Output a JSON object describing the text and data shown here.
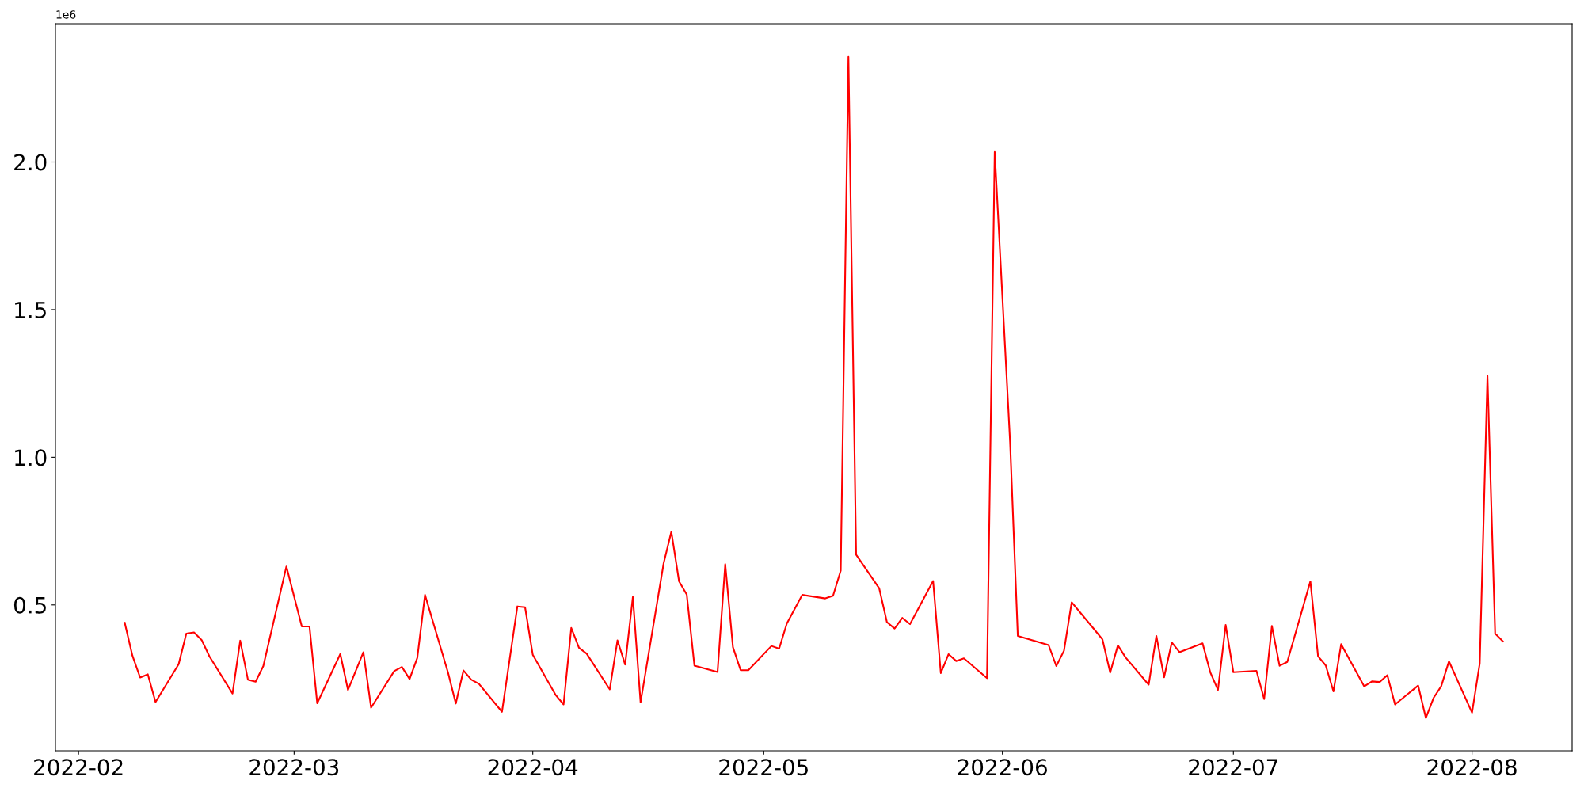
{
  "chart_data": {
    "type": "line",
    "annotations": [
      "1e6"
    ],
    "x": [
      "2022-02-07",
      "2022-02-08",
      "2022-02-09",
      "2022-02-10",
      "2022-02-11",
      "2022-02-14",
      "2022-02-15",
      "2022-02-16",
      "2022-02-17",
      "2022-02-18",
      "2022-02-21",
      "2022-02-22",
      "2022-02-23",
      "2022-02-24",
      "2022-02-25",
      "2022-02-28",
      "2022-03-02",
      "2022-03-03",
      "2022-03-04",
      "2022-03-07",
      "2022-03-08",
      "2022-03-10",
      "2022-03-11",
      "2022-03-14",
      "2022-03-15",
      "2022-03-16",
      "2022-03-17",
      "2022-03-18",
      "2022-03-21",
      "2022-03-22",
      "2022-03-23",
      "2022-03-24",
      "2022-03-25",
      "2022-03-28",
      "2022-03-30",
      "2022-03-31",
      "2022-04-01",
      "2022-04-04",
      "2022-04-05",
      "2022-04-06",
      "2022-04-07",
      "2022-04-08",
      "2022-04-11",
      "2022-04-12",
      "2022-04-13",
      "2022-04-14",
      "2022-04-15",
      "2022-04-18",
      "2022-04-19",
      "2022-04-20",
      "2022-04-21",
      "2022-04-22",
      "2022-04-25",
      "2022-04-26",
      "2022-04-27",
      "2022-04-28",
      "2022-04-29",
      "2022-05-02",
      "2022-05-03",
      "2022-05-04",
      "2022-05-06",
      "2022-05-09",
      "2022-05-10",
      "2022-05-11",
      "2022-05-12",
      "2022-05-13",
      "2022-05-16",
      "2022-05-17",
      "2022-05-18",
      "2022-05-19",
      "2022-05-20",
      "2022-05-23",
      "2022-05-24",
      "2022-05-25",
      "2022-05-26",
      "2022-05-27",
      "2022-05-30",
      "2022-05-31",
      "2022-06-02",
      "2022-06-03",
      "2022-06-07",
      "2022-06-08",
      "2022-06-09",
      "2022-06-10",
      "2022-06-13",
      "2022-06-14",
      "2022-06-15",
      "2022-06-16",
      "2022-06-17",
      "2022-06-20",
      "2022-06-21",
      "2022-06-22",
      "2022-06-23",
      "2022-06-24",
      "2022-06-27",
      "2022-06-28",
      "2022-06-29",
      "2022-06-30",
      "2022-07-01",
      "2022-07-04",
      "2022-07-05",
      "2022-07-06",
      "2022-07-07",
      "2022-07-08",
      "2022-07-11",
      "2022-07-12",
      "2022-07-13",
      "2022-07-14",
      "2022-07-15",
      "2022-07-18",
      "2022-07-19",
      "2022-07-20",
      "2022-07-21",
      "2022-07-22",
      "2022-07-25",
      "2022-07-26",
      "2022-07-27",
      "2022-07-28",
      "2022-07-29",
      "2022-08-01",
      "2022-08-02",
      "2022-08-03",
      "2022-08-04",
      "2022-08-05"
    ],
    "series": [
      {
        "color": "#ff0000",
        "values": [
          0.44,
          0.328,
          0.254,
          0.265,
          0.171,
          0.299,
          0.403,
          0.407,
          0.381,
          0.326,
          0.2,
          0.379,
          0.247,
          0.24,
          0.293,
          0.63,
          0.427,
          0.427,
          0.167,
          0.334,
          0.212,
          0.34,
          0.152,
          0.276,
          0.29,
          0.249,
          0.321,
          0.534,
          0.27,
          0.166,
          0.278,
          0.247,
          0.233,
          0.138,
          0.495,
          0.492,
          0.331,
          0.194,
          0.163,
          0.422,
          0.355,
          0.335,
          0.214,
          0.38,
          0.298,
          0.527,
          0.17,
          0.641,
          0.748,
          0.58,
          0.535,
          0.294,
          0.273,
          0.638,
          0.357,
          0.279,
          0.279,
          0.361,
          0.352,
          0.437,
          0.534,
          0.522,
          0.531,
          0.616,
          2.356,
          0.67,
          0.556,
          0.442,
          0.42,
          0.456,
          0.435,
          0.581,
          0.269,
          0.333,
          0.31,
          0.319,
          0.252,
          2.034,
          1.051,
          0.395,
          0.364,
          0.293,
          0.345,
          0.509,
          0.415,
          0.383,
          0.271,
          0.363,
          0.322,
          0.23,
          0.395,
          0.255,
          0.373,
          0.34,
          0.37,
          0.272,
          0.212,
          0.432,
          0.272,
          0.277,
          0.181,
          0.429,
          0.294,
          0.307,
          0.58,
          0.326,
          0.295,
          0.207,
          0.367,
          0.224,
          0.241,
          0.239,
          0.262,
          0.163,
          0.227,
          0.117,
          0.185,
          0.225,
          0.309,
          0.135,
          0.302,
          1.276,
          0.403,
          0.377
        ]
      }
    ],
    "xlim": [
      "2022-01-29",
      "2022-08-14"
    ],
    "xticks": [
      {
        "value": "2022-02-01",
        "label": "2022-02"
      },
      {
        "value": "2022-03-01",
        "label": "2022-03"
      },
      {
        "value": "2022-04-01",
        "label": "2022-04"
      },
      {
        "value": "2022-05-01",
        "label": "2022-05"
      },
      {
        "value": "2022-06-01",
        "label": "2022-06"
      },
      {
        "value": "2022-07-01",
        "label": "2022-07"
      },
      {
        "value": "2022-08-01",
        "label": "2022-08"
      }
    ],
    "ylim": [
      0.006,
      2.468
    ],
    "yticks": [
      0.5,
      {
        "value": 1,
        "label": "1.0"
      },
      1.5,
      {
        "value": 2,
        "label": "2.0"
      }
    ],
    "grid": false,
    "legend": false,
    "marker": "none",
    "line_style": "solid"
  }
}
